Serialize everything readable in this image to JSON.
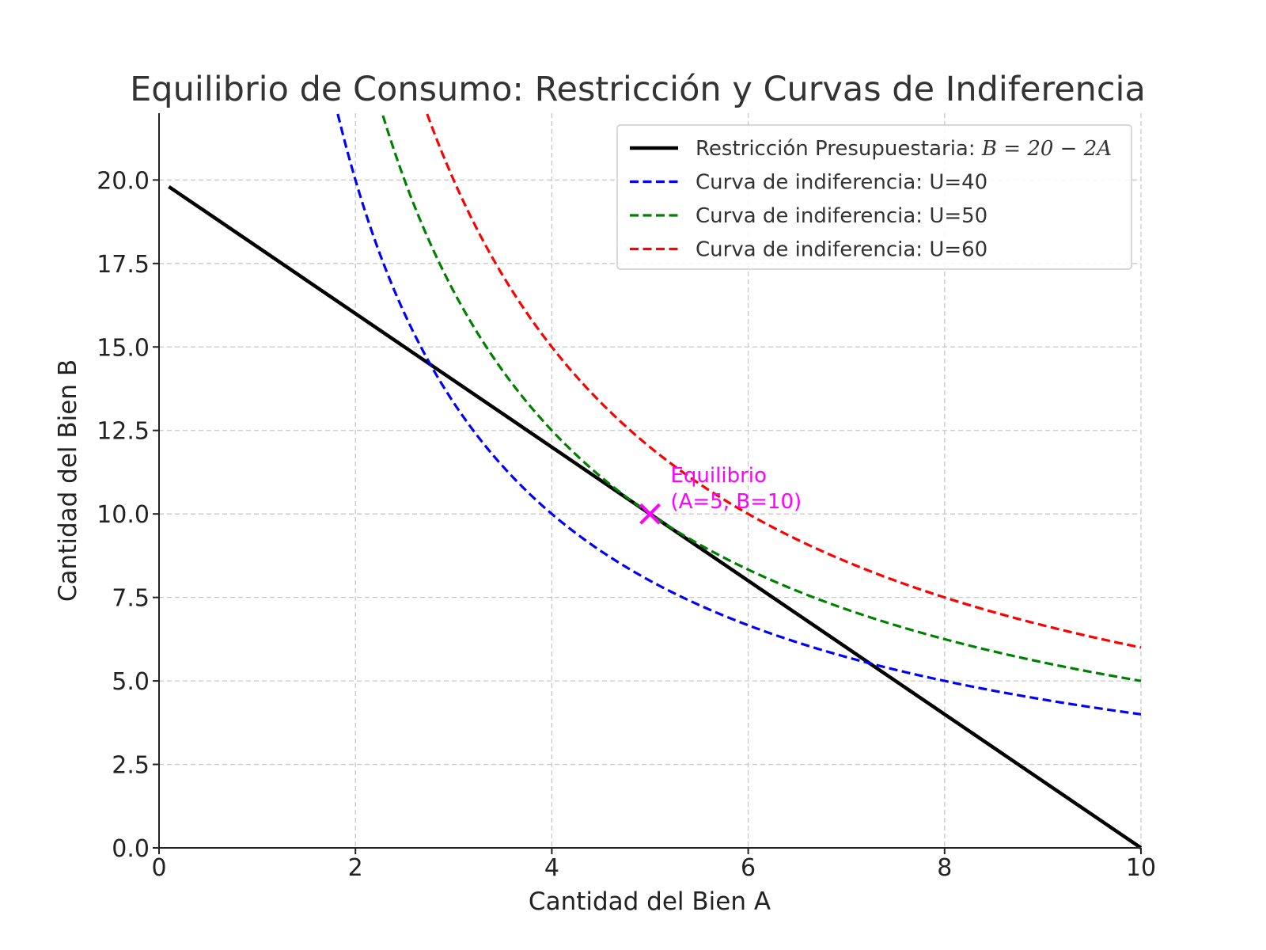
{
  "chart_data": {
    "type": "line",
    "title": "Equilibrio de Consumo: Restricción y Curvas de Indiferencia",
    "xlabel": "Cantidad del Bien A",
    "ylabel": "Cantidad del Bien B",
    "xlim": [
      0,
      10
    ],
    "ylim": [
      0,
      22
    ],
    "xticks": [
      0,
      2,
      4,
      6,
      8,
      10
    ],
    "xtick_labels": [
      "0",
      "2",
      "4",
      "6",
      "8",
      "10"
    ],
    "yticks": [
      0,
      2.5,
      5,
      7.5,
      10,
      12.5,
      15,
      17.5,
      20
    ],
    "ytick_labels": [
      "0.0",
      "2.5",
      "5.0",
      "7.5",
      "10.0",
      "12.5",
      "15.0",
      "17.5",
      "20.0"
    ],
    "grid": true,
    "legend_position": "top-right",
    "series": [
      {
        "name_prefix": "Restricción Presupuestaria: ",
        "name_math": "B = 20 − 2A",
        "style": "solid",
        "color": "#000000",
        "x": [
          0.1,
          10
        ],
        "y": [
          19.8,
          0
        ]
      },
      {
        "name": "Curva de indiferencia: U=40",
        "style": "dashed",
        "color": "#0000ff",
        "U": 40,
        "x": [
          1.82,
          2,
          2.5,
          3,
          3.5,
          4,
          4.5,
          5,
          6,
          7,
          8,
          9,
          10
        ],
        "y": [
          21.98,
          20,
          16,
          13.33,
          11.43,
          10,
          8.89,
          8,
          6.67,
          5.71,
          5,
          4.44,
          4
        ]
      },
      {
        "name": "Curva de indiferencia: U=50",
        "style": "dashed",
        "color": "#008000",
        "U": 50,
        "x": [
          2.28,
          2.5,
          3,
          3.5,
          4,
          4.5,
          5,
          6,
          7,
          8,
          9,
          10
        ],
        "y": [
          21.93,
          20,
          16.67,
          14.29,
          12.5,
          11.11,
          10,
          8.33,
          7.14,
          6.25,
          5.56,
          5
        ]
      },
      {
        "name": "Curva de indiferencia: U=60",
        "style": "dashed",
        "color": "#ff0000",
        "U": 60,
        "x": [
          2.73,
          3,
          3.5,
          4,
          4.5,
          5,
          6,
          7,
          8,
          9,
          10
        ],
        "y": [
          21.98,
          20,
          17.14,
          15,
          13.33,
          12,
          10,
          8.57,
          7.5,
          6.67,
          6
        ]
      }
    ],
    "annotations": [
      {
        "text_lines": [
          "Equilibrio",
          "(A=5, B=10)"
        ],
        "x": 5,
        "y": 10,
        "marker": "x",
        "color": "#ff00ff"
      }
    ]
  }
}
